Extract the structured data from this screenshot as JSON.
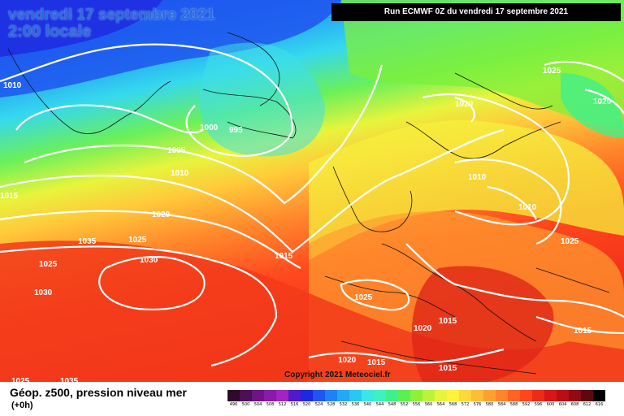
{
  "title": {
    "line1": "vendredi 17 septembre 2021",
    "line2": "2:00 locale"
  },
  "run_info": "Run ECMWF 0Z du vendredi 17 septembre 2021",
  "copyright": "Copyright 2021 Meteociel.fr",
  "legend": {
    "title": "Géop. z500, pression niveau mer",
    "subtitle": "(+0h)",
    "scale": [
      {
        "value": "496",
        "color": "#2d0a2e"
      },
      {
        "value": "500",
        "color": "#4d0f55"
      },
      {
        "value": "504",
        "color": "#6e1487"
      },
      {
        "value": "508",
        "color": "#8a1aa8"
      },
      {
        "value": "512",
        "color": "#a323c4"
      },
      {
        "value": "516",
        "color": "#5019c9"
      },
      {
        "value": "520",
        "color": "#1e28e0"
      },
      {
        "value": "524",
        "color": "#1f55f0"
      },
      {
        "value": "528",
        "color": "#1e82f5"
      },
      {
        "value": "532",
        "color": "#23a8f5"
      },
      {
        "value": "536",
        "color": "#2ac8f0"
      },
      {
        "value": "540",
        "color": "#3ae6e8"
      },
      {
        "value": "544",
        "color": "#3cf2c0"
      },
      {
        "value": "548",
        "color": "#40f08a"
      },
      {
        "value": "552",
        "color": "#5af050"
      },
      {
        "value": "556",
        "color": "#8ef03a"
      },
      {
        "value": "560",
        "color": "#bdf23a"
      },
      {
        "value": "564",
        "color": "#e6f43c"
      },
      {
        "value": "568",
        "color": "#fff23c"
      },
      {
        "value": "572",
        "color": "#ffd83a"
      },
      {
        "value": "576",
        "color": "#ffbc36"
      },
      {
        "value": "580",
        "color": "#ffa030"
      },
      {
        "value": "584",
        "color": "#ff842a"
      },
      {
        "value": "588",
        "color": "#ff6424"
      },
      {
        "value": "592",
        "color": "#ff461e"
      },
      {
        "value": "596",
        "color": "#f02a18"
      },
      {
        "value": "600",
        "color": "#d81616"
      },
      {
        "value": "604",
        "color": "#b80e14"
      },
      {
        "value": "608",
        "color": "#900a12"
      },
      {
        "value": "612",
        "color": "#5c0810"
      },
      {
        "value": "616",
        "color": "#000000"
      }
    ]
  },
  "isobar_labels": [
    "1010",
    "1015",
    "1000",
    "995",
    "1005",
    "1010",
    "1020",
    "1025",
    "1030",
    "1025",
    "1030",
    "1025",
    "1035",
    "1015",
    "1020",
    "1025",
    "1020",
    "1010",
    "1010",
    "1025",
    "1020",
    "1015",
    "1015",
    "1020",
    "1015",
    "1015",
    "1025",
    "1035"
  ]
}
